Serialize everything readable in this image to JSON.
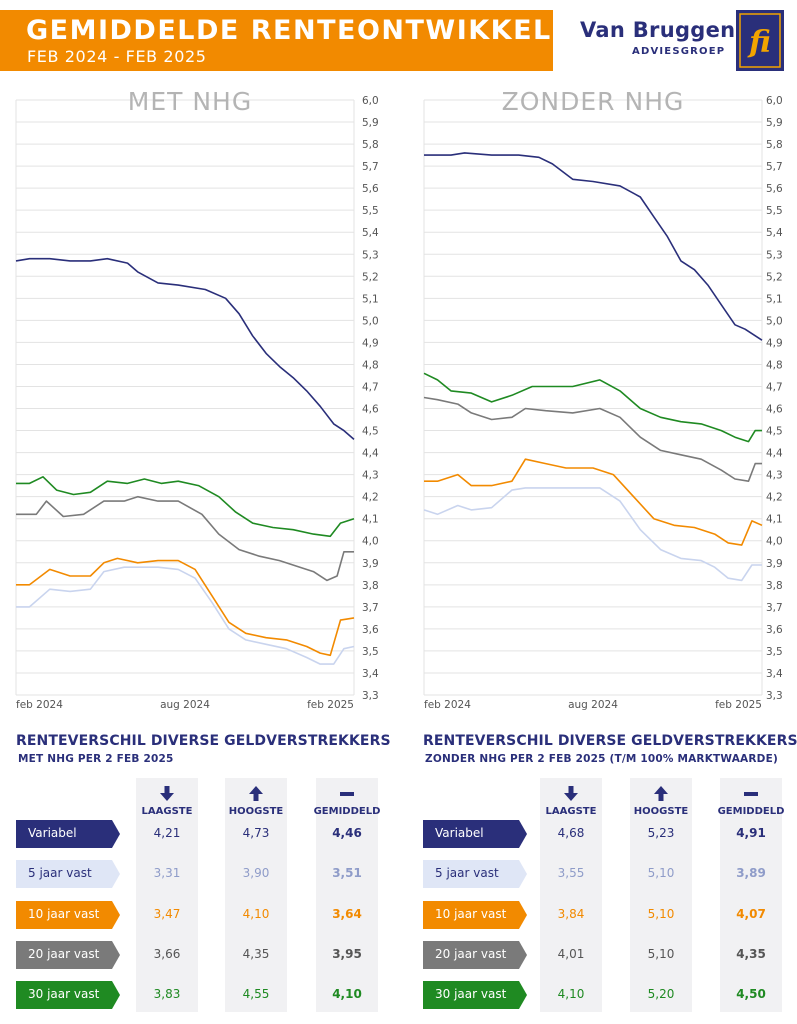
{
  "header": {
    "title": "GEMIDDELDE RENTEONTWIKKELING",
    "subtitle": "FEB 2024 - FEB 2025",
    "brand_name": "Van Bruggen",
    "brand_sub": "ADVIESGROEP",
    "logo_text": "fi"
  },
  "colors": {
    "navy": "#2a2f7a",
    "orange": "#f28a00",
    "green": "#1f8a22",
    "grey": "#7a7a7a",
    "light_blue": "#c9d4ee",
    "grid": "#e3e3e3"
  },
  "chart_data": [
    {
      "type": "line",
      "title": "MET NHG",
      "x_ticks": [
        "feb 2024",
        "aug 2024",
        "feb 2025"
      ],
      "ylim": [
        3.3,
        6.0
      ],
      "y_ticks": [
        "6,0",
        "5,9",
        "5,8",
        "5,7",
        "5,6",
        "5,5",
        "5,4",
        "5,3",
        "5,2",
        "5,1",
        "5,0",
        "4,9",
        "4,8",
        "4,7",
        "4,6",
        "4,5",
        "4,4",
        "4,3",
        "4,2",
        "4,1",
        "4,0",
        "3,9",
        "3,8",
        "3,7",
        "3,6",
        "3,5",
        "3,4",
        "3,3"
      ],
      "grid": true,
      "series": [
        {
          "key": "variabel",
          "color": "#2a2f7a",
          "points": [
            [
              0,
              5.27
            ],
            [
              0.04,
              5.28
            ],
            [
              0.1,
              5.28
            ],
            [
              0.16,
              5.27
            ],
            [
              0.22,
              5.27
            ],
            [
              0.27,
              5.28
            ],
            [
              0.33,
              5.26
            ],
            [
              0.36,
              5.22
            ],
            [
              0.42,
              5.17
            ],
            [
              0.48,
              5.16
            ],
            [
              0.56,
              5.14
            ],
            [
              0.62,
              5.1
            ],
            [
              0.66,
              5.03
            ],
            [
              0.7,
              4.93
            ],
            [
              0.74,
              4.85
            ],
            [
              0.78,
              4.79
            ],
            [
              0.82,
              4.74
            ],
            [
              0.86,
              4.68
            ],
            [
              0.9,
              4.61
            ],
            [
              0.94,
              4.53
            ],
            [
              0.97,
              4.5
            ],
            [
              1,
              4.46
            ]
          ]
        },
        {
          "key": "30_jaar_vast",
          "color": "#1f8a22",
          "points": [
            [
              0,
              4.26
            ],
            [
              0.04,
              4.26
            ],
            [
              0.08,
              4.29
            ],
            [
              0.12,
              4.23
            ],
            [
              0.17,
              4.21
            ],
            [
              0.22,
              4.22
            ],
            [
              0.27,
              4.27
            ],
            [
              0.33,
              4.26
            ],
            [
              0.38,
              4.28
            ],
            [
              0.43,
              4.26
            ],
            [
              0.48,
              4.27
            ],
            [
              0.54,
              4.25
            ],
            [
              0.6,
              4.2
            ],
            [
              0.65,
              4.13
            ],
            [
              0.7,
              4.08
            ],
            [
              0.76,
              4.06
            ],
            [
              0.82,
              4.05
            ],
            [
              0.88,
              4.03
            ],
            [
              0.93,
              4.02
            ],
            [
              0.96,
              4.08
            ],
            [
              1,
              4.1
            ]
          ]
        },
        {
          "key": "20_jaar_vast",
          "color": "#7a7a7a",
          "points": [
            [
              0,
              4.12
            ],
            [
              0.06,
              4.12
            ],
            [
              0.09,
              4.18
            ],
            [
              0.14,
              4.11
            ],
            [
              0.2,
              4.12
            ],
            [
              0.26,
              4.18
            ],
            [
              0.32,
              4.18
            ],
            [
              0.36,
              4.2
            ],
            [
              0.42,
              4.18
            ],
            [
              0.48,
              4.18
            ],
            [
              0.55,
              4.12
            ],
            [
              0.6,
              4.03
            ],
            [
              0.66,
              3.96
            ],
            [
              0.72,
              3.93
            ],
            [
              0.78,
              3.91
            ],
            [
              0.84,
              3.88
            ],
            [
              0.88,
              3.86
            ],
            [
              0.92,
              3.82
            ],
            [
              0.95,
              3.84
            ],
            [
              0.97,
              3.95
            ],
            [
              1,
              3.95
            ]
          ]
        },
        {
          "key": "10_jaar_vast",
          "color": "#f28a00",
          "points": [
            [
              0,
              3.8
            ],
            [
              0.04,
              3.8
            ],
            [
              0.1,
              3.87
            ],
            [
              0.16,
              3.84
            ],
            [
              0.22,
              3.84
            ],
            [
              0.26,
              3.9
            ],
            [
              0.3,
              3.92
            ],
            [
              0.36,
              3.9
            ],
            [
              0.42,
              3.91
            ],
            [
              0.48,
              3.91
            ],
            [
              0.53,
              3.87
            ],
            [
              0.58,
              3.75
            ],
            [
              0.63,
              3.63
            ],
            [
              0.68,
              3.58
            ],
            [
              0.74,
              3.56
            ],
            [
              0.8,
              3.55
            ],
            [
              0.86,
              3.52
            ],
            [
              0.9,
              3.49
            ],
            [
              0.93,
              3.48
            ],
            [
              0.96,
              3.64
            ],
            [
              1,
              3.65
            ]
          ]
        },
        {
          "key": "5_jaar_vast",
          "color": "#c9d4ee",
          "points": [
            [
              0,
              3.7
            ],
            [
              0.04,
              3.7
            ],
            [
              0.1,
              3.78
            ],
            [
              0.16,
              3.77
            ],
            [
              0.22,
              3.78
            ],
            [
              0.26,
              3.86
            ],
            [
              0.32,
              3.88
            ],
            [
              0.36,
              3.88
            ],
            [
              0.42,
              3.88
            ],
            [
              0.48,
              3.87
            ],
            [
              0.53,
              3.83
            ],
            [
              0.58,
              3.72
            ],
            [
              0.63,
              3.6
            ],
            [
              0.68,
              3.55
            ],
            [
              0.74,
              3.53
            ],
            [
              0.8,
              3.51
            ],
            [
              0.86,
              3.47
            ],
            [
              0.9,
              3.44
            ],
            [
              0.94,
              3.44
            ],
            [
              0.97,
              3.51
            ],
            [
              1,
              3.52
            ]
          ]
        }
      ]
    },
    {
      "type": "line",
      "title": "ZONDER NHG",
      "x_ticks": [
        "feb 2024",
        "aug 2024",
        "feb 2025"
      ],
      "ylim": [
        3.3,
        6.0
      ],
      "y_ticks": [
        "6,0",
        "5,9",
        "5,8",
        "5,7",
        "5,6",
        "5,5",
        "5,4",
        "5,3",
        "5,2",
        "5,1",
        "5,0",
        "4,9",
        "4,8",
        "4,7",
        "4,6",
        "4,5",
        "4,4",
        "4,3",
        "4,2",
        "4,1",
        "4,0",
        "3,9",
        "3,8",
        "3,7",
        "3,6",
        "3,5",
        "3,4",
        "3,3"
      ],
      "grid": true,
      "series": [
        {
          "key": "variabel",
          "color": "#2a2f7a",
          "points": [
            [
              0,
              5.75
            ],
            [
              0.08,
              5.75
            ],
            [
              0.12,
              5.76
            ],
            [
              0.2,
              5.75
            ],
            [
              0.28,
              5.75
            ],
            [
              0.34,
              5.74
            ],
            [
              0.38,
              5.71
            ],
            [
              0.44,
              5.64
            ],
            [
              0.5,
              5.63
            ],
            [
              0.58,
              5.61
            ],
            [
              0.64,
              5.56
            ],
            [
              0.68,
              5.47
            ],
            [
              0.72,
              5.38
            ],
            [
              0.76,
              5.27
            ],
            [
              0.8,
              5.23
            ],
            [
              0.84,
              5.16
            ],
            [
              0.88,
              5.07
            ],
            [
              0.92,
              4.98
            ],
            [
              0.95,
              4.96
            ],
            [
              1,
              4.91
            ]
          ]
        },
        {
          "key": "30_jaar_vast",
          "color": "#1f8a22",
          "points": [
            [
              0,
              4.76
            ],
            [
              0.04,
              4.73
            ],
            [
              0.08,
              4.68
            ],
            [
              0.14,
              4.67
            ],
            [
              0.2,
              4.63
            ],
            [
              0.26,
              4.66
            ],
            [
              0.32,
              4.7
            ],
            [
              0.38,
              4.7
            ],
            [
              0.44,
              4.7
            ],
            [
              0.52,
              4.73
            ],
            [
              0.58,
              4.68
            ],
            [
              0.64,
              4.6
            ],
            [
              0.7,
              4.56
            ],
            [
              0.76,
              4.54
            ],
            [
              0.82,
              4.53
            ],
            [
              0.88,
              4.5
            ],
            [
              0.92,
              4.47
            ],
            [
              0.96,
              4.45
            ],
            [
              0.98,
              4.5
            ],
            [
              1,
              4.5
            ]
          ]
        },
        {
          "key": "20_jaar_vast",
          "color": "#7a7a7a",
          "points": [
            [
              0,
              4.65
            ],
            [
              0.04,
              4.64
            ],
            [
              0.1,
              4.62
            ],
            [
              0.14,
              4.58
            ],
            [
              0.2,
              4.55
            ],
            [
              0.26,
              4.56
            ],
            [
              0.3,
              4.6
            ],
            [
              0.36,
              4.59
            ],
            [
              0.44,
              4.58
            ],
            [
              0.52,
              4.6
            ],
            [
              0.58,
              4.56
            ],
            [
              0.64,
              4.47
            ],
            [
              0.7,
              4.41
            ],
            [
              0.76,
              4.39
            ],
            [
              0.82,
              4.37
            ],
            [
              0.88,
              4.32
            ],
            [
              0.92,
              4.28
            ],
            [
              0.96,
              4.27
            ],
            [
              0.98,
              4.35
            ],
            [
              1,
              4.35
            ]
          ]
        },
        {
          "key": "10_jaar_vast",
          "color": "#f28a00",
          "points": [
            [
              0,
              4.27
            ],
            [
              0.04,
              4.27
            ],
            [
              0.1,
              4.3
            ],
            [
              0.14,
              4.25
            ],
            [
              0.2,
              4.25
            ],
            [
              0.26,
              4.27
            ],
            [
              0.3,
              4.37
            ],
            [
              0.36,
              4.35
            ],
            [
              0.42,
              4.33
            ],
            [
              0.5,
              4.33
            ],
            [
              0.56,
              4.3
            ],
            [
              0.62,
              4.2
            ],
            [
              0.68,
              4.1
            ],
            [
              0.74,
              4.07
            ],
            [
              0.8,
              4.06
            ],
            [
              0.86,
              4.03
            ],
            [
              0.9,
              3.99
            ],
            [
              0.94,
              3.98
            ],
            [
              0.97,
              4.09
            ],
            [
              1,
              4.07
            ]
          ]
        },
        {
          "key": "5_jaar_vast",
          "color": "#c9d4ee",
          "points": [
            [
              0,
              4.14
            ],
            [
              0.04,
              4.12
            ],
            [
              0.1,
              4.16
            ],
            [
              0.14,
              4.14
            ],
            [
              0.2,
              4.15
            ],
            [
              0.26,
              4.23
            ],
            [
              0.3,
              4.24
            ],
            [
              0.38,
              4.24
            ],
            [
              0.46,
              4.24
            ],
            [
              0.52,
              4.24
            ],
            [
              0.58,
              4.18
            ],
            [
              0.64,
              4.05
            ],
            [
              0.7,
              3.96
            ],
            [
              0.76,
              3.92
            ],
            [
              0.82,
              3.91
            ],
            [
              0.86,
              3.88
            ],
            [
              0.9,
              3.83
            ],
            [
              0.94,
              3.82
            ],
            [
              0.97,
              3.89
            ],
            [
              1,
              3.89
            ]
          ]
        }
      ]
    }
  ],
  "tables": [
    {
      "title": "RENTEVERSCHIL DIVERSE GELDVERSTREKKERS",
      "subtitle": "MET NHG PER 2 FEB 2025",
      "col_low": "LAAGSTE",
      "col_high": "HOOGSTE",
      "col_avg": "GEMIDDELD",
      "rows": [
        {
          "label": "Variabel",
          "low": "4,21",
          "high": "4,73",
          "avg": "4,46",
          "bg": "#2a2f7a",
          "fg": "#ffffff",
          "val": "#2a2f7a"
        },
        {
          "label": "5 jaar vast",
          "low": "3,31",
          "high": "3,90",
          "avg": "3,51",
          "bg": "#dfe6f6",
          "fg": "#2a2f7a",
          "val": "#8f9cc9"
        },
        {
          "label": "10 jaar vast",
          "low": "3,47",
          "high": "4,10",
          "avg": "3,64",
          "bg": "#f28a00",
          "fg": "#ffffff",
          "val": "#f28a00"
        },
        {
          "label": "20 jaar vast",
          "low": "3,66",
          "high": "4,35",
          "avg": "3,95",
          "bg": "#7a7a7a",
          "fg": "#ffffff",
          "val": "#555555"
        },
        {
          "label": "30 jaar vast",
          "low": "3,83",
          "high": "4,55",
          "avg": "4,10",
          "bg": "#1f8a22",
          "fg": "#ffffff",
          "val": "#1f8a22"
        }
      ]
    },
    {
      "title": "RENTEVERSCHIL DIVERSE GELDVERSTREKKERS",
      "subtitle": "ZONDER NHG PER 2 FEB 2025 (T/M 100% MARKTWAARDE)",
      "col_low": "LAAGSTE",
      "col_high": "HOOGSTE",
      "col_avg": "GEMIDDELD",
      "rows": [
        {
          "label": "Variabel",
          "low": "4,68",
          "high": "5,23",
          "avg": "4,91",
          "bg": "#2a2f7a",
          "fg": "#ffffff",
          "val": "#2a2f7a"
        },
        {
          "label": "5 jaar vast",
          "low": "3,55",
          "high": "5,10",
          "avg": "3,89",
          "bg": "#dfe6f6",
          "fg": "#2a2f7a",
          "val": "#8f9cc9"
        },
        {
          "label": "10 jaar vast",
          "low": "3,84",
          "high": "5,10",
          "avg": "4,07",
          "bg": "#f28a00",
          "fg": "#ffffff",
          "val": "#f28a00"
        },
        {
          "label": "20 jaar vast",
          "low": "4,01",
          "high": "5,10",
          "avg": "4,35",
          "bg": "#7a7a7a",
          "fg": "#ffffff",
          "val": "#555555"
        },
        {
          "label": "30 jaar vast",
          "low": "4,10",
          "high": "5,20",
          "avg": "4,50",
          "bg": "#1f8a22",
          "fg": "#ffffff",
          "val": "#1f8a22"
        }
      ]
    }
  ]
}
